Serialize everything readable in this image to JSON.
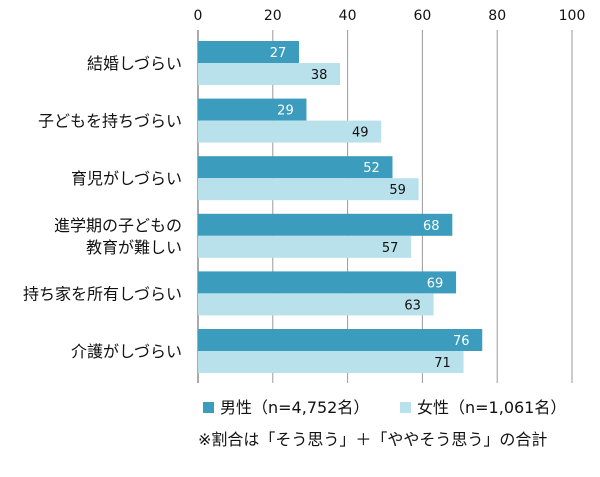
{
  "chart_data": {
    "type": "bar",
    "orientation": "horizontal",
    "categories": [
      [
        "結婚しづらい"
      ],
      [
        "子どもを持ちづらい"
      ],
      [
        "育児がしづらい"
      ],
      [
        "進学期の子どもの",
        "教育が難しい"
      ],
      [
        "持ち家を所有しづらい"
      ],
      [
        "介護がしづらい"
      ]
    ],
    "series": [
      {
        "name": "男性（n=4,752名）",
        "values": [
          27,
          29,
          52,
          68,
          69,
          76
        ]
      },
      {
        "name": "女性（n=1,061名）",
        "values": [
          38,
          49,
          59,
          57,
          63,
          71
        ]
      }
    ],
    "xlim": [
      0,
      100
    ],
    "xticks": [
      0,
      20,
      40,
      60,
      80,
      100
    ],
    "grid": true,
    "legend_position": "bottom",
    "colors": {
      "male": "#3b9cbd",
      "female": "#b9e1ec",
      "grid": "#9a9a9a",
      "axis": "#555555"
    },
    "label_colors": {
      "male": "#ffffff",
      "female": "#111111"
    }
  },
  "note": "※割合は「そう思う」＋「ややそう思う」の合計"
}
